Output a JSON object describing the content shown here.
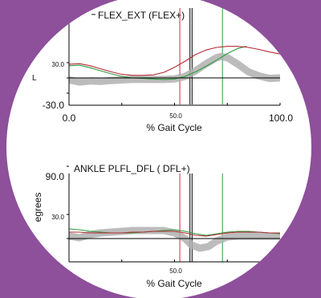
{
  "chart_data": [
    {
      "type": "line",
      "title": "FLEX_EXT  (FLEX+)",
      "xlabel": "% Gait Cycle",
      "ylabel": "",
      "xlim": [
        0,
        100
      ],
      "ylim": [
        -30,
        60
      ],
      "x_ticks": [
        "0.0",
        "50.0",
        "100.0"
      ],
      "y_ticks": [
        "30.0",
        "-30.0"
      ],
      "event_lines": [
        {
          "x": 52.5,
          "color": "#c8283c"
        },
        {
          "x": 57.3,
          "color": "#000000"
        },
        {
          "x": 58.3,
          "color": "#000000"
        },
        {
          "x": 72.7,
          "color": "#2e9a3a"
        }
      ],
      "series": [
        {
          "color": "#b0b0b0",
          "x": [
            0,
            5,
            10,
            15,
            20,
            25,
            30,
            35,
            40,
            45,
            50,
            55,
            60,
            65,
            70,
            72,
            75,
            80,
            85,
            90,
            95,
            100
          ],
          "y": [
            -4,
            -8,
            -6,
            -7,
            -5,
            -4,
            -3,
            -3,
            -3,
            -3,
            -2,
            3,
            14,
            28,
            40,
            42,
            40,
            27,
            12,
            4,
            -1,
            0
          ]
        },
        {
          "color": "#2e9a3a",
          "x": [
            0,
            5,
            10,
            15,
            20,
            25,
            30,
            35,
            40,
            45,
            50,
            55,
            60,
            65,
            70,
            75,
            80,
            84
          ],
          "y": [
            24,
            25,
            20,
            14,
            8,
            3,
            0,
            -1,
            -2,
            -3,
            -2,
            3,
            12,
            23,
            35,
            48,
            58,
            62
          ]
        },
        {
          "color": "#b52a36",
          "x": [
            0,
            5,
            10,
            15,
            20,
            25,
            30,
            35,
            40,
            45,
            50,
            55,
            60,
            65,
            70,
            75,
            80,
            85,
            90,
            95,
            100
          ],
          "y": [
            27,
            28,
            24,
            18,
            12,
            7,
            5,
            5,
            6,
            11,
            21,
            33,
            46,
            55,
            60,
            62,
            62,
            60,
            56,
            51,
            47
          ]
        }
      ]
    },
    {
      "type": "line",
      "title": "ANKLE PLFL_DFL    ( DFL+)",
      "xlabel": "% Gait Cycle",
      "ylabel": "egrees",
      "xlim": [
        0,
        100
      ],
      "ylim": [
        -30,
        90
      ],
      "x_ticks": [
        "50.0"
      ],
      "y_ticks": [
        "90.0",
        "30.0"
      ],
      "event_lines": [
        {
          "x": 52.5,
          "color": "#c8283c"
        },
        {
          "x": 57.3,
          "color": "#000000"
        },
        {
          "x": 58.3,
          "color": "#000000"
        },
        {
          "x": 72.7,
          "color": "#2e9a3a"
        }
      ],
      "series": [
        {
          "color": "#b0b0b0",
          "x": [
            0,
            5,
            10,
            15,
            20,
            25,
            30,
            35,
            40,
            45,
            50,
            55,
            58,
            62,
            66,
            70,
            75,
            80,
            85,
            90,
            95,
            100
          ],
          "y": [
            3,
            1,
            5,
            7,
            8,
            9,
            10,
            10,
            10,
            10,
            7,
            0,
            -8,
            -12,
            -10,
            -3,
            2,
            3,
            3,
            3,
            3,
            3
          ]
        },
        {
          "color": "#2e9a3a",
          "x": [
            0,
            5,
            10,
            15,
            20,
            25,
            30,
            35,
            40,
            45,
            50,
            55,
            60,
            65,
            70,
            75,
            80,
            85,
            90,
            95,
            100
          ],
          "y": [
            12,
            11,
            9,
            8,
            7,
            7,
            7,
            8,
            9,
            10,
            11,
            9,
            6,
            4,
            6,
            8,
            9,
            9,
            8,
            7,
            6
          ]
        },
        {
          "color": "#b52a36",
          "x": [
            0,
            5,
            10,
            15,
            20,
            25,
            30,
            35,
            40,
            45,
            50,
            55,
            60,
            65,
            70,
            75,
            80,
            85,
            90,
            95,
            100
          ],
          "y": [
            8,
            8,
            7,
            7,
            7,
            7,
            8,
            8,
            9,
            9,
            9,
            7,
            4,
            3,
            5,
            7,
            8,
            8,
            8,
            7,
            7
          ]
        }
      ]
    }
  ]
}
